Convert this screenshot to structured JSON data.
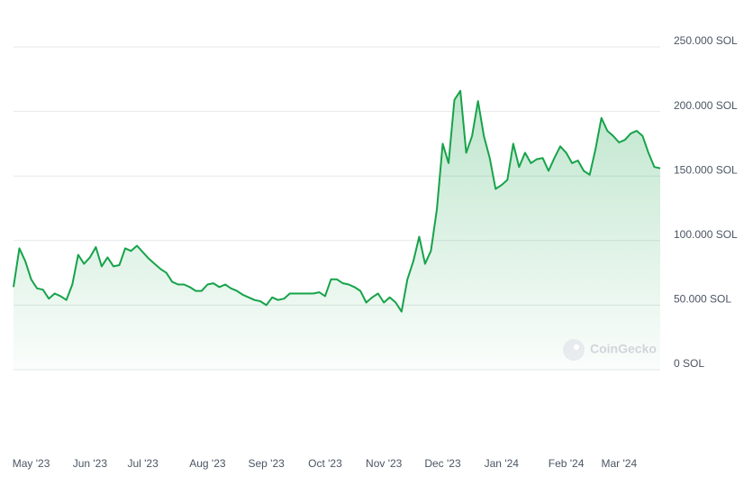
{
  "chart_data": {
    "type": "line",
    "watermark": "CoinGecko",
    "color": "#16a34a",
    "area": true,
    "grid": true,
    "ylim": [
      0,
      250000
    ],
    "yticks": [
      {
        "value": 0,
        "label": "0 SOL"
      },
      {
        "value": 50000,
        "label": "50.000 SOL"
      },
      {
        "value": 100000,
        "label": "100.000 SOL"
      },
      {
        "value": 150000,
        "label": "150.000 SOL"
      },
      {
        "value": 200000,
        "label": "200.000 SOL"
      },
      {
        "value": 250000,
        "label": "250.000 SOL"
      }
    ],
    "categories": [
      null,
      null,
      null,
      "May '23",
      null,
      null,
      null,
      null,
      null,
      null,
      null,
      null,
      null,
      "Jun '23",
      null,
      null,
      null,
      null,
      null,
      null,
      null,
      null,
      "Jul '23",
      null,
      null,
      null,
      null,
      null,
      null,
      null,
      null,
      null,
      null,
      "Aug '23",
      null,
      null,
      null,
      null,
      null,
      null,
      null,
      null,
      null,
      "Sep '23",
      null,
      null,
      null,
      null,
      null,
      null,
      null,
      null,
      null,
      "Oct '23",
      null,
      null,
      null,
      null,
      null,
      null,
      null,
      null,
      null,
      "Nov '23",
      null,
      null,
      null,
      null,
      null,
      null,
      null,
      null,
      null,
      "Dec '23",
      null,
      null,
      null,
      null,
      null,
      null,
      null,
      null,
      null,
      "Jan '24",
      null,
      null,
      null,
      null,
      null,
      null,
      null,
      null,
      null,
      null,
      "Feb '24",
      null,
      null,
      null,
      null,
      null,
      null,
      null,
      null,
      "Mar '24",
      null,
      null,
      null,
      null,
      null,
      null,
      null
    ],
    "values": [
      64000,
      94000,
      84000,
      70000,
      63000,
      62000,
      55000,
      59000,
      57000,
      54000,
      66000,
      89000,
      82000,
      87000,
      95000,
      80000,
      87000,
      80000,
      81000,
      94000,
      92000,
      96000,
      91000,
      86000,
      82000,
      78000,
      75000,
      68000,
      66000,
      66000,
      64000,
      61000,
      61000,
      66000,
      67000,
      64000,
      66000,
      63000,
      61000,
      58000,
      56000,
      54000,
      53000,
      50000,
      56000,
      54000,
      55000,
      59000,
      59000,
      59000,
      59000,
      59000,
      60000,
      57000,
      70000,
      70000,
      67000,
      66000,
      64000,
      61000,
      52000,
      56000,
      59000,
      52000,
      56000,
      52000,
      45000,
      70000,
      84000,
      103000,
      82000,
      92000,
      124000,
      175000,
      160000,
      209000,
      216000,
      168000,
      181000,
      208000,
      181000,
      164000,
      140000,
      143000,
      147000,
      175000,
      157000,
      168000,
      160000,
      163000,
      164000,
      154000,
      164000,
      173000,
      168000,
      160000,
      162000,
      154000,
      151000,
      171000,
      195000,
      185000,
      181000,
      176000,
      178000,
      183000,
      185000,
      181000,
      168000,
      157000,
      156000
    ]
  }
}
